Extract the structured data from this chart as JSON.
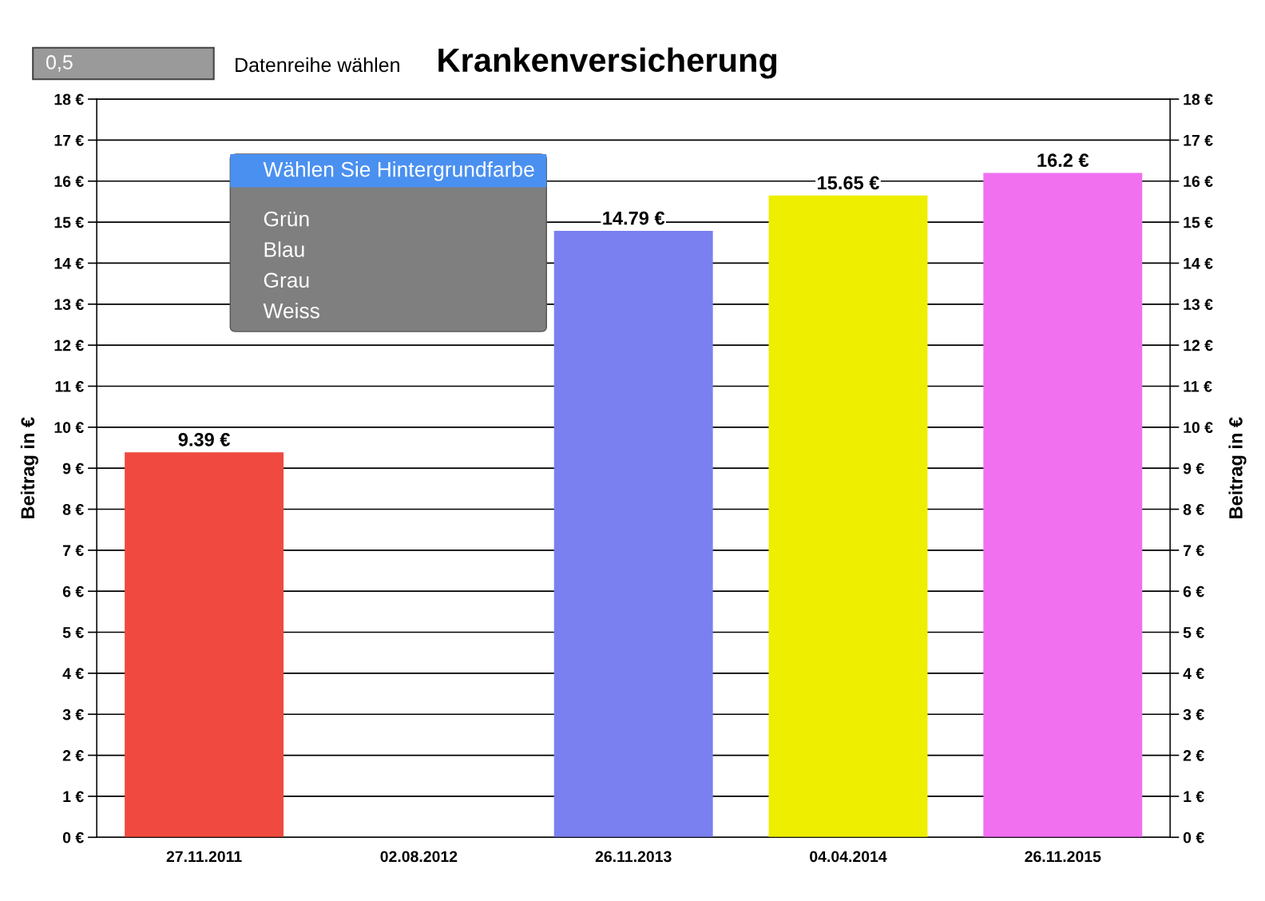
{
  "chart_data": {
    "type": "bar",
    "title": "Krankenversicherung",
    "categories": [
      "27.11.2011",
      "02.08.2012",
      "26.11.2013",
      "04.04.2014",
      "26.11.2015"
    ],
    "values": [
      9.39,
      null,
      14.79,
      15.65,
      16.2
    ],
    "value_labels": [
      "9.39 €",
      null,
      "14.79 €",
      "15.65 €",
      "16.2 €"
    ],
    "colors": [
      "#f04a40",
      "#22dd33",
      "#7b80f0",
      "#eeee00",
      "#f070f0"
    ],
    "ylabel": "Beitrag in €",
    "y2label": "Beitrag in €",
    "ylim": [
      0,
      18
    ],
    "y2lim": [
      0,
      18
    ],
    "yticks": [
      {
        "value": 0,
        "label": "0 €"
      },
      {
        "value": 1,
        "label": "1 €"
      },
      {
        "value": 2,
        "label": "2 €"
      },
      {
        "value": 3,
        "label": "3 €"
      },
      {
        "value": 4,
        "label": "4 €"
      },
      {
        "value": 5,
        "label": "5 €"
      },
      {
        "value": 6,
        "label": "6 €"
      },
      {
        "value": 7,
        "label": "7 €"
      },
      {
        "value": 8,
        "label": "8 €"
      },
      {
        "value": 9,
        "label": "9 €"
      },
      {
        "value": 10,
        "label": "10 €"
      },
      {
        "value": 11,
        "label": "11 €"
      },
      {
        "value": 12,
        "label": "12 €"
      },
      {
        "value": 13,
        "label": "13 €"
      },
      {
        "value": 14,
        "label": "14 €"
      },
      {
        "value": 15,
        "label": "15 €"
      },
      {
        "value": 16,
        "label": "16 €"
      },
      {
        "value": 17,
        "label": "17 €"
      },
      {
        "value": 18,
        "label": "18 €"
      }
    ],
    "y2ticks": [
      {
        "value": 0,
        "label": "0 €"
      },
      {
        "value": 1,
        "label": "1 €"
      },
      {
        "value": 2,
        "label": "2 €"
      },
      {
        "value": 3,
        "label": "3 €"
      },
      {
        "value": 4,
        "label": "4 €"
      },
      {
        "value": 5,
        "label": "5 €"
      },
      {
        "value": 6,
        "label": "6 €"
      },
      {
        "value": 7,
        "label": "7 €"
      },
      {
        "value": 8,
        "label": "8 €"
      },
      {
        "value": 9,
        "label": "9 €"
      },
      {
        "value": 10,
        "label": "10 €"
      },
      {
        "value": 11,
        "label": "11 €"
      },
      {
        "value": 12,
        "label": "12 €"
      },
      {
        "value": 13,
        "label": "13 €"
      },
      {
        "value": 14,
        "label": "14 €"
      },
      {
        "value": 15,
        "label": "15 €"
      },
      {
        "value": 16,
        "label": "16 €"
      },
      {
        "value": 17,
        "label": "17 €"
      },
      {
        "value": 18,
        "label": "18 €"
      }
    ],
    "grid": "y",
    "annotations": [
      "0,5",
      "Datenreihe wählen",
      "Wählen Sie Hintergrundfarbe",
      "Grün",
      "Blau",
      "Grau",
      "Weiss"
    ]
  }
}
